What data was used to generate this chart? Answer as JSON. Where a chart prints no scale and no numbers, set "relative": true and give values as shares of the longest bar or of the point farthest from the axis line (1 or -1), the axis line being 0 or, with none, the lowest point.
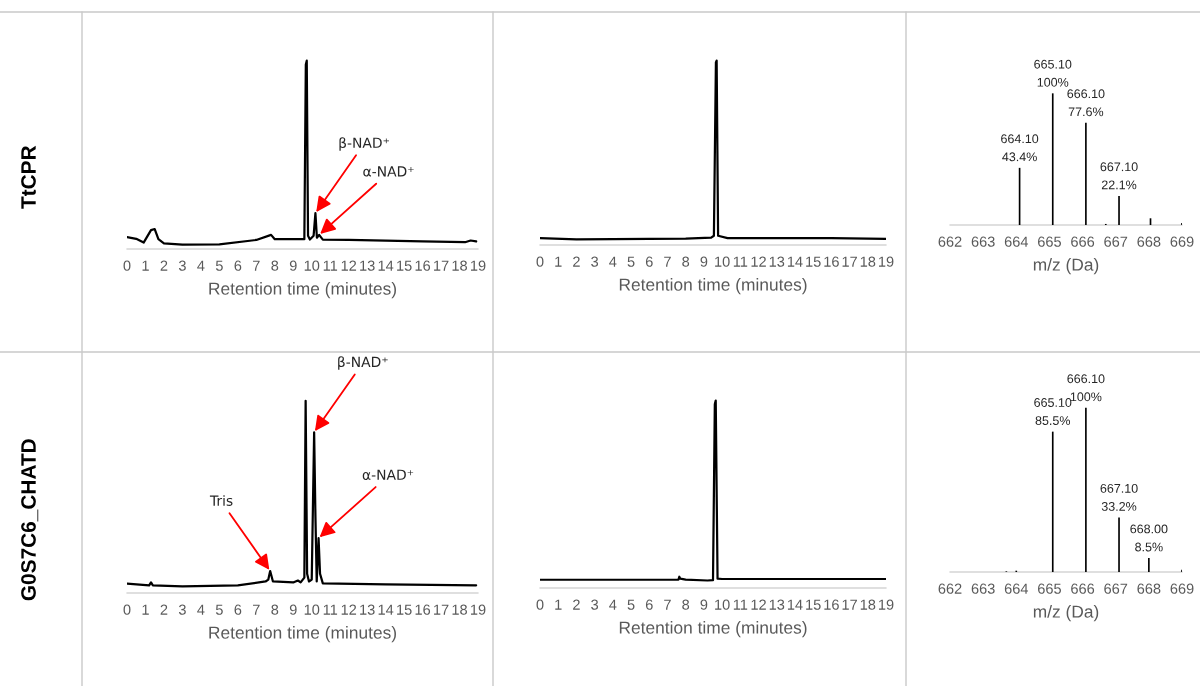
{
  "chart_data": [
    {
      "type": "line",
      "relative": true,
      "ylabel": "TtCPR",
      "xlabel": "Retention time (minutes)",
      "xlim": [
        0,
        19
      ],
      "xticks": [
        0,
        1,
        2,
        3,
        4,
        5,
        6,
        7,
        8,
        9,
        10,
        11,
        12,
        13,
        14,
        15,
        16,
        17,
        18,
        19
      ],
      "series": [
        {
          "color": "#000000",
          "x": [
            0,
            0.5,
            0.9,
            1.3,
            1.5,
            1.7,
            2.0,
            3,
            5,
            7,
            7.8,
            8.0,
            9.4,
            9.6,
            9.68,
            9.73,
            9.8,
            9.9,
            10.1,
            10.2,
            10.28,
            10.4,
            10.6,
            12,
            16,
            18.3,
            18.6,
            18.9
          ],
          "values": [
            0.063,
            0.054,
            0.034,
            0.1,
            0.106,
            0.052,
            0.03,
            0.023,
            0.025,
            0.048,
            0.075,
            0.052,
            0.052,
            0.052,
            0.98,
            1.0,
            0.07,
            0.05,
            0.07,
            0.19,
            0.06,
            0.075,
            0.05,
            0.048,
            0.04,
            0.036,
            0.045,
            0.04
          ]
        }
      ],
      "annotations": [
        {
          "text": "β-NAD⁺",
          "x": 10.2,
          "y": 0.19
        },
        {
          "text": "α-NAD⁺",
          "x": 10.4,
          "y": 0.075
        }
      ]
    },
    {
      "type": "line",
      "relative": true,
      "xlabel": "Retention time (minutes)",
      "xlim": [
        0,
        19
      ],
      "xticks": [
        0,
        1,
        2,
        3,
        4,
        5,
        6,
        7,
        8,
        9,
        10,
        11,
        12,
        13,
        14,
        15,
        16,
        17,
        18,
        19
      ],
      "series": [
        {
          "color": "#000000",
          "x": [
            0,
            2,
            8,
            9.4,
            9.55,
            9.66,
            9.7,
            9.78,
            10.3,
            16,
            19
          ],
          "values": [
            0.037,
            0.03,
            0.035,
            0.04,
            0.05,
            0.99,
            1.0,
            0.05,
            0.037,
            0.037,
            0.033
          ]
        }
      ]
    },
    {
      "type": "bar",
      "xlabel": "m/z (Da)",
      "xlim": [
        662,
        669
      ],
      "xticks": [
        662,
        663,
        664,
        665,
        666,
        667,
        668,
        669
      ],
      "tick_labels": "x",
      "x": [
        664.1,
        665.1,
        666.1,
        666.7,
        667.1,
        668.05,
        669.0
      ],
      "values": [
        43.4,
        100,
        77.6,
        0.8,
        22.1,
        5.1,
        1.5
      ],
      "color": "#000000",
      "value_labels": [
        "43.4%",
        "100%",
        "77.6%",
        null,
        "22.1%",
        null,
        null
      ],
      "annotations": [
        {
          "text": "664.10",
          "x": 664.1,
          "y": 43.4
        },
        {
          "text": "665.10",
          "x": 665.1,
          "y": 100
        },
        {
          "text": "666.10",
          "x": 666.1,
          "y": 77.6
        },
        {
          "text": "667.10",
          "x": 667.1,
          "y": 22.1
        }
      ]
    },
    {
      "type": "line",
      "relative": true,
      "ylabel": "G0S7C6_CHATD",
      "xlabel": "Retention time (minutes)",
      "xlim": [
        0,
        19
      ],
      "xticks": [
        0,
        1,
        2,
        3,
        4,
        5,
        6,
        7,
        8,
        9,
        10,
        11,
        12,
        13,
        14,
        15,
        16,
        17,
        18,
        19
      ],
      "series": [
        {
          "color": "#000000",
          "x": [
            0,
            1.2,
            1.3,
            1.4,
            3,
            6,
            7.5,
            7.65,
            7.75,
            7.9,
            9.0,
            9.25,
            9.4,
            9.6,
            9.67,
            9.75,
            9.85,
            10.0,
            10.13,
            10.2,
            10.27,
            10.37,
            10.45,
            10.6,
            14,
            18.9
          ],
          "values": [
            0.049,
            0.04,
            0.055,
            0.04,
            0.035,
            0.04,
            0.06,
            0.07,
            0.114,
            0.06,
            0.055,
            0.065,
            0.055,
            0.08,
            1.0,
            0.1,
            0.06,
            0.07,
            0.836,
            0.4,
            0.06,
            0.285,
            0.1,
            0.05,
            0.045,
            0.04
          ]
        }
      ],
      "annotations": [
        {
          "text": "Tris",
          "x": 7.75,
          "y": 0.114
        },
        {
          "text": "β-NAD⁺",
          "x": 10.13,
          "y": 0.836
        },
        {
          "text": "α-NAD⁺",
          "x": 10.37,
          "y": 0.285
        }
      ]
    },
    {
      "type": "line",
      "relative": true,
      "xlabel": "Retention time (minutes)",
      "xlim": [
        0,
        19
      ],
      "xticks": [
        0,
        1,
        2,
        3,
        4,
        5,
        6,
        7,
        8,
        9,
        10,
        11,
        12,
        13,
        14,
        15,
        16,
        17,
        18,
        19
      ],
      "series": [
        {
          "color": "#000000",
          "x": [
            0,
            7.6,
            7.65,
            7.7,
            8,
            9.2,
            9.5,
            9.6,
            9.65,
            9.75,
            10,
            19
          ],
          "values": [
            0.044,
            0.044,
            0.06,
            0.05,
            0.045,
            0.04,
            0.042,
            0.98,
            1.0,
            0.05,
            0.048,
            0.048
          ]
        }
      ]
    },
    {
      "type": "bar",
      "xlabel": "m/z (Da)",
      "xlim": [
        662,
        669
      ],
      "xticks": [
        662,
        663,
        664,
        665,
        666,
        667,
        668,
        669
      ],
      "tick_labels": "x",
      "x": [
        663.7,
        664.0,
        665.1,
        666.1,
        667.1,
        668.0,
        669.0
      ],
      "values": [
        0.4,
        0.8,
        85.5,
        100,
        33.2,
        8.5,
        1.4
      ],
      "color": "#000000",
      "value_labels": [
        null,
        null,
        "85.5%",
        "100%",
        "33.2%",
        "8.5%",
        null
      ],
      "annotations": [
        {
          "text": "665.10",
          "x": 665.1,
          "y": 85.5
        },
        {
          "text": "666.10",
          "x": 666.1,
          "y": 100
        },
        {
          "text": "667.10",
          "x": 667.1,
          "y": 33.2
        },
        {
          "text": "668.00",
          "x": 668.0,
          "y": 8.5
        }
      ]
    }
  ]
}
